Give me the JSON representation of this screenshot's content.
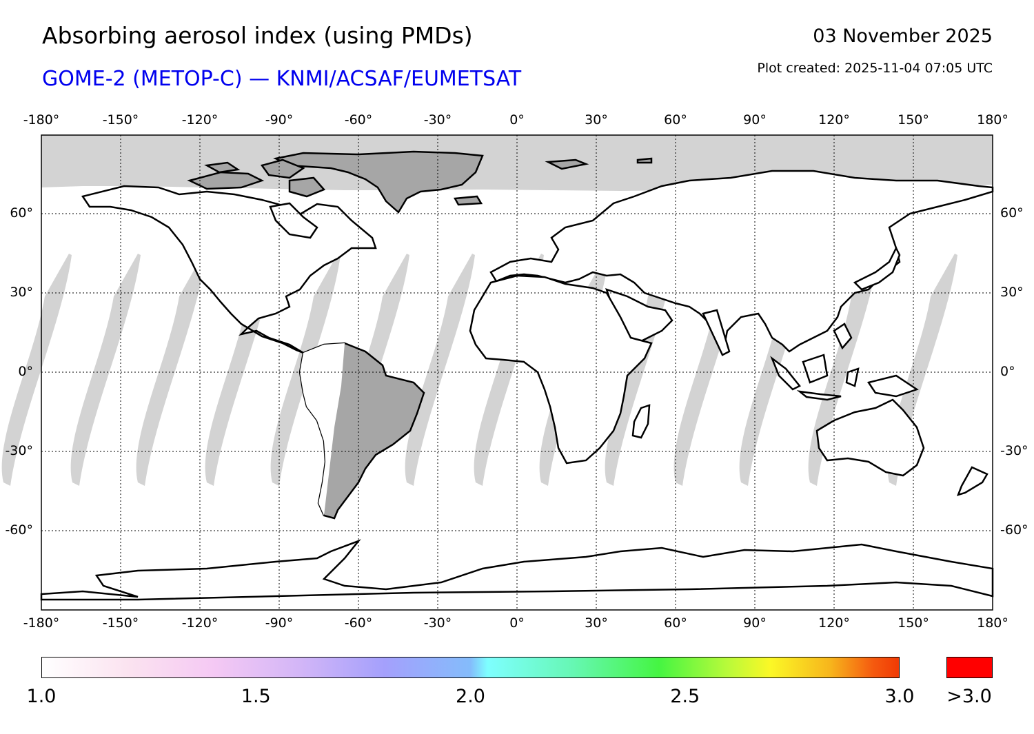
{
  "header": {
    "title": "Absorbing aerosol index (using PMDs)",
    "subtitle": "GOME-2 (METOP-C) — KNMI/ACSAF/EUMETSAT",
    "date": "03 November 2025",
    "created": "Plot created: 2025-11-04 07:05 UTC"
  },
  "axes": {
    "lon_labels": [
      "-180°",
      "-150°",
      "-120°",
      "-90°",
      "-60°",
      "-30°",
      "0°",
      "30°",
      "60°",
      "90°",
      "120°",
      "150°",
      "180°"
    ],
    "lat_labels": [
      "60°",
      "30°",
      "0°",
      "-30°",
      "-60°"
    ]
  },
  "colorbar": {
    "tick_labels": [
      "1.0",
      "1.5",
      "2.0",
      "2.5",
      "3.0"
    ],
    "over_label": ">3.0",
    "over_color": "#ff0000",
    "range": [
      1.0,
      3.0
    ]
  },
  "colors": {
    "land": "#a6a6a6",
    "no_data": "#d3d3d3",
    "coast": "#000000",
    "grid": "#000000",
    "subtitle": "#0000ee"
  }
}
